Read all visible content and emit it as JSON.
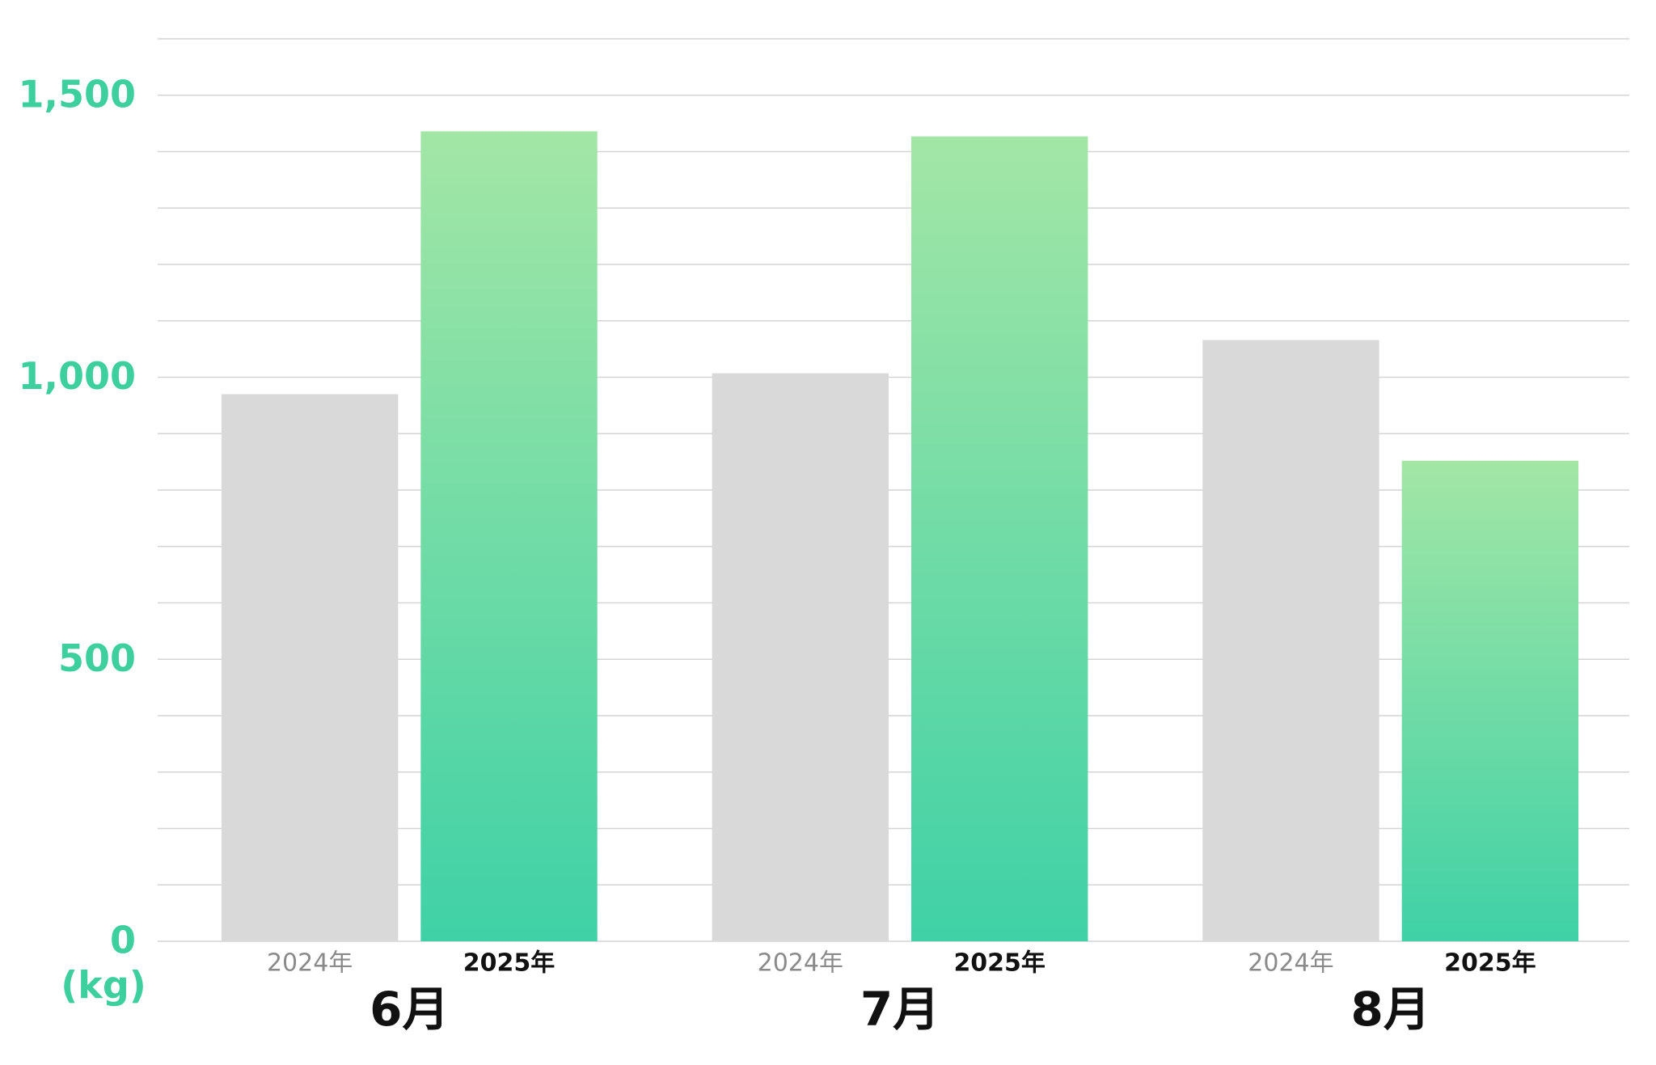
{
  "chart_data": {
    "type": "grouped-bar",
    "categories": [
      "6月",
      "7月",
      "8月"
    ],
    "series": [
      {
        "name": "2024年",
        "color": "#d9d9d9",
        "values": [
          970,
          1007,
          1066
        ]
      },
      {
        "name": "2025年",
        "color": "#3fd1a6",
        "gradient_top": "#a3e6a6",
        "values": [
          1436,
          1427,
          852
        ]
      }
    ],
    "y_unit": "(kg)",
    "ylim": [
      0,
      1600
    ],
    "yticks": [
      0,
      500,
      {
        "value": 1000,
        "label": "1,000"
      },
      {
        "value": 1500,
        "label": "1,500"
      }
    ],
    "minor_yticks": [
      100,
      200,
      300,
      400,
      600,
      700,
      800,
      900,
      1100,
      1200,
      1300,
      1400,
      1600
    ],
    "tick_color": "#3ecf9f",
    "grid": true
  }
}
